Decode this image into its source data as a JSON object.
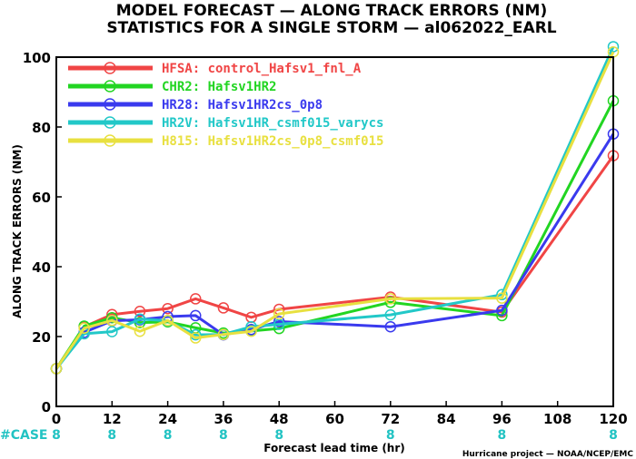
{
  "title_line1": "MODEL FORECAST — ALONG TRACK ERRORS (NM)",
  "title_line2": "STATISTICS FOR A SINGLE STORM — al062022_EARL",
  "credit": "Hurricane project — NOAA/NCEP/EMC",
  "case_label": "#CASE",
  "chart_data": {
    "type": "line",
    "title": "MODEL FORECAST — ALONG TRACK ERRORS (NM)",
    "subtitle": "STATISTICS FOR A SINGLE STORM — al062022_EARL",
    "xlabel": "Forecast lead time (hr)",
    "ylabel": "ALONG TRACK ERRORS (NM)",
    "xlim": [
      0,
      120
    ],
    "ylim": [
      0,
      100
    ],
    "xticks": [
      "0",
      "12",
      "24",
      "36",
      "48",
      "60",
      "72",
      "84",
      "96",
      "108",
      "120"
    ],
    "yticks": [
      "0",
      "20",
      "40",
      "60",
      "80",
      "100"
    ],
    "grid": false,
    "legend_position": "top-left",
    "case_counts": {
      "x": [
        0,
        12,
        24,
        36,
        48,
        72,
        96,
        120
      ],
      "values": [
        "8",
        "8",
        "8",
        "8",
        "8",
        "8",
        "8",
        "8"
      ]
    },
    "series": [
      {
        "name": "HFSA: control_Hafsv1_fnl_A",
        "color": "#f04545",
        "x": [
          0,
          6,
          12,
          18,
          24,
          30,
          36,
          42,
          48,
          72,
          96,
          120
        ],
        "y": [
          10.8,
          22.8,
          26.3,
          27.2,
          28.0,
          30.8,
          28.2,
          25.5,
          27.8,
          31.3,
          27.0,
          71.8
        ]
      },
      {
        "name": "CHR2: Hafsv1HR2",
        "color": "#22d522",
        "x": [
          0,
          6,
          12,
          18,
          24,
          30,
          36,
          42,
          48,
          72,
          96,
          120
        ],
        "y": [
          10.8,
          23.0,
          25.4,
          24.0,
          24.2,
          22.5,
          21.0,
          21.6,
          22.3,
          29.8,
          26.0,
          87.5
        ]
      },
      {
        "name": "HR28: Hafsv1HR2cs_0p8",
        "color": "#3a3aee",
        "x": [
          0,
          6,
          12,
          18,
          24,
          30,
          36,
          42,
          48,
          72,
          96,
          120
        ],
        "y": [
          10.8,
          21.2,
          24.5,
          24.8,
          25.7,
          26.0,
          20.5,
          22.0,
          24.3,
          22.8,
          27.5,
          78.0
        ]
      },
      {
        "name": "HR2V: Hafsv1HR_csmf015_varycs",
        "color": "#22c8c8",
        "x": [
          0,
          6,
          12,
          18,
          24,
          30,
          36,
          42,
          48,
          72,
          96,
          120
        ],
        "y": [
          10.8,
          20.8,
          21.4,
          25.0,
          24.5,
          20.5,
          20.6,
          22.8,
          23.5,
          26.2,
          32.0,
          103.0
        ]
      },
      {
        "name": "H815: Hafsv1HR2cs_0p8_csmf015",
        "color": "#e8e040",
        "x": [
          0,
          6,
          12,
          18,
          24,
          30,
          36,
          42,
          48,
          72,
          96,
          120
        ],
        "y": [
          10.8,
          22.4,
          24.6,
          21.5,
          24.6,
          19.6,
          20.6,
          21.5,
          26.5,
          30.8,
          31.0,
          101.5
        ]
      }
    ]
  }
}
